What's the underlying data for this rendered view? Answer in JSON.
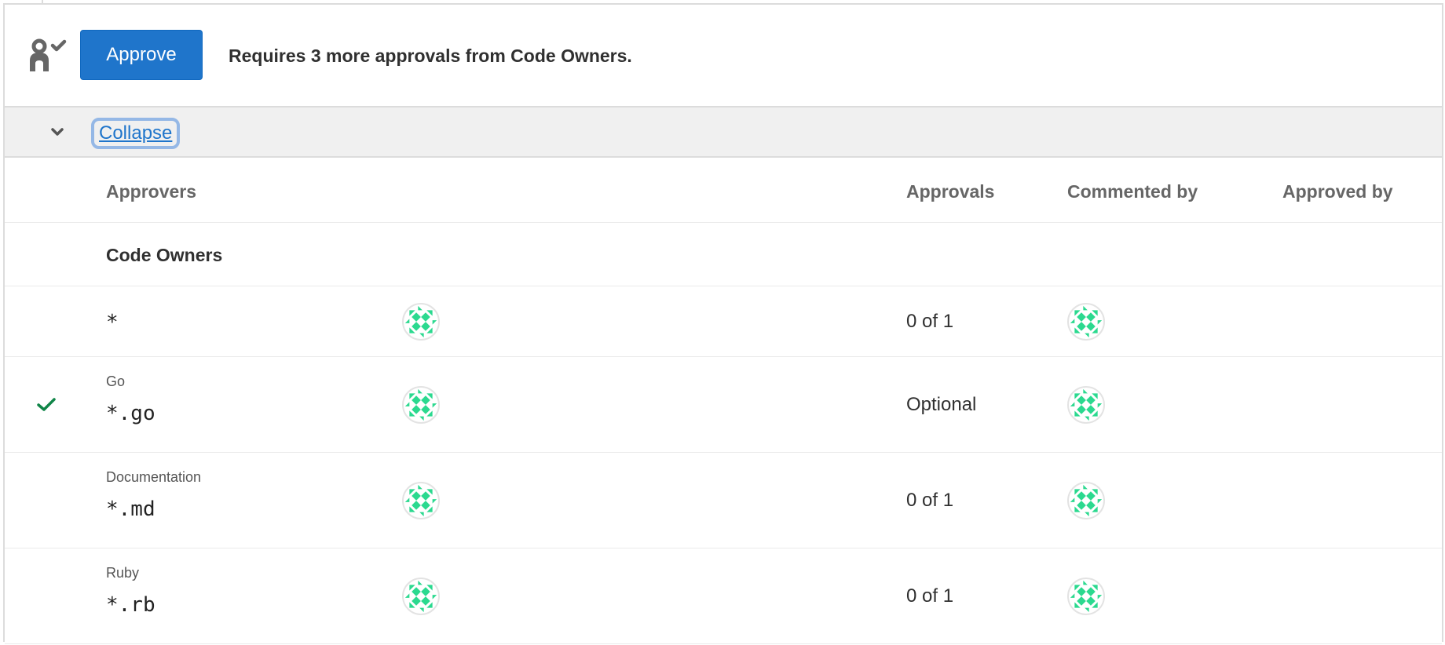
{
  "header": {
    "approve_button": "Approve",
    "requirement_text": "Requires 3 more approvals from Code Owners.",
    "icon": "approval-icon"
  },
  "toggle": {
    "label": "Collapse",
    "icon": "chevron-down-icon"
  },
  "table": {
    "columns": [
      "Approvers",
      "Approvals",
      "Commented by",
      "Approved by"
    ],
    "section": "Code Owners",
    "rows": [
      {
        "name": "",
        "pattern": "*",
        "approvals": "0 of 1",
        "approved": false
      },
      {
        "name": "Go",
        "pattern": "*.go",
        "approvals": "Optional",
        "approved": true
      },
      {
        "name": "Documentation",
        "pattern": "*.md",
        "approvals": "0 of 1",
        "approved": false
      },
      {
        "name": "Ruby",
        "pattern": "*.rb",
        "approvals": "0 of 1",
        "approved": false
      }
    ]
  },
  "colors": {
    "accent": "#1f75cb",
    "avatar": "#2bd98f",
    "check": "#108548"
  }
}
